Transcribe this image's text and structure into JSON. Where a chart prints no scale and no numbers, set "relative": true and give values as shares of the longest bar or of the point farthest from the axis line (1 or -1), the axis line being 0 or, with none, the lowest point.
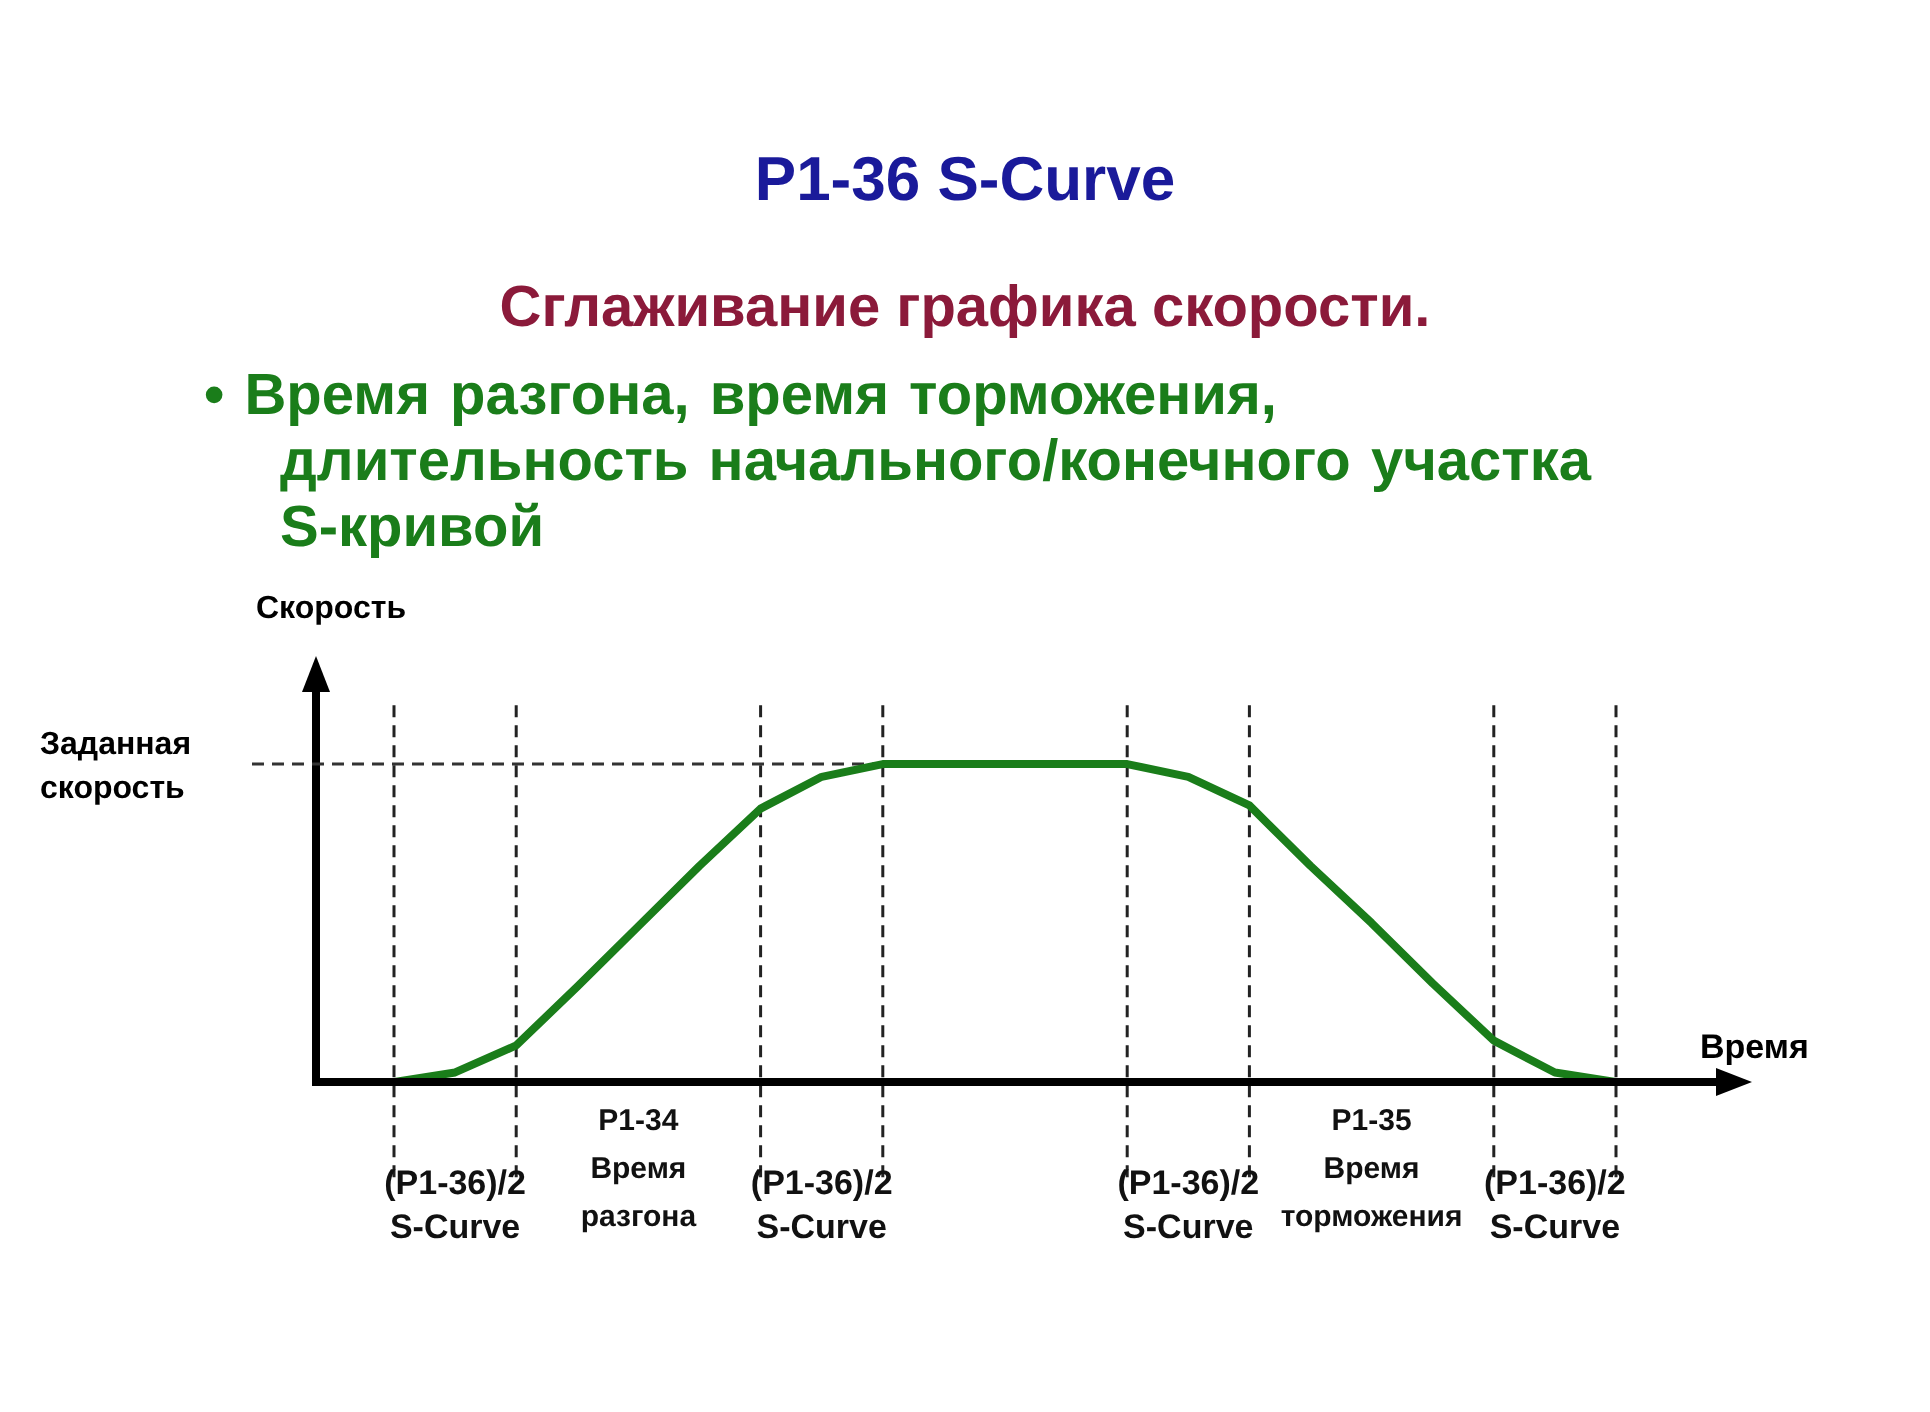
{
  "chart_data": {
    "type": "line",
    "relative": true,
    "title": "P1-36 S-Curve",
    "subtitle": "Сглаживание графика скорости.",
    "xlabel": "Время",
    "ylabel": "Скорость",
    "marker": "none",
    "line_style": "solid",
    "grid": "x",
    "categories": [
      null,
      "(P1-36)/2\nS-Curve",
      null,
      null,
      "P1-34\nВремя\nразгона",
      null,
      null,
      "(P1-36)/2\nS-Curve",
      null,
      null,
      null,
      null,
      null,
      "(P1-36)/2\nS-Curve",
      null,
      null,
      "P1-35\nВремя\nторможения",
      null,
      null,
      "(P1-36)/2\nS-Curve",
      null
    ],
    "series": [
      {
        "color": "#1a7d1a",
        "values": [
          0,
          0.03,
          0.115,
          0.3,
          0.49,
          0.68,
          0.86,
          0.96,
          1,
          1,
          1,
          1,
          1,
          0.96,
          0.87,
          0.68,
          0.5,
          0.31,
          0.13,
          0.03,
          0
        ]
      }
    ],
    "ref_lines": [
      {
        "axis": "y",
        "value": 1,
        "label": "Заданная скорость",
        "line_style": "dashed",
        "color": "#333333"
      }
    ],
    "annotations": [
      "• Время разгона, время торможения, длительность начального/конечного участка S-кривой"
    ]
  }
}
